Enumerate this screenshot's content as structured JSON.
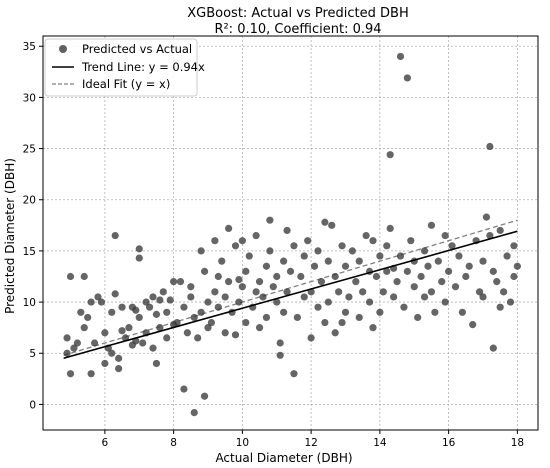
{
  "chart_data": {
    "type": "scatter",
    "title": "XGBoost: Actual vs Predicted DBH",
    "subtitle": "R²: 0.10, Coefficient: 0.94",
    "xlabel": "Actual Diameter (DBH)",
    "ylabel": "Predicted Diameter (DBH)",
    "xlim": [
      4.2,
      18.6
    ],
    "ylim": [
      -2.5,
      36
    ],
    "xticks": [
      6,
      8,
      10,
      12,
      14,
      16,
      18
    ],
    "yticks": [
      0,
      5,
      10,
      15,
      20,
      25,
      30,
      35
    ],
    "grid": true,
    "legend_position": "top-left",
    "legend": [
      {
        "label": "Predicted vs Actual",
        "marker": "circle",
        "color": "#3a3a3a"
      },
      {
        "label": "Trend Line: y = 0.94x",
        "marker": "line",
        "color": "#000000"
      },
      {
        "label": "Ideal Fit (y = x)",
        "marker": "dashed-line",
        "color": "#808080"
      }
    ],
    "trend_line": {
      "slope": 0.94,
      "x_range": [
        4.8,
        18
      ]
    },
    "ideal_line": {
      "slope": 1.0,
      "x_range": [
        4.8,
        18
      ]
    },
    "series": [
      {
        "name": "Predicted vs Actual",
        "color": "#3a3a3a",
        "points": [
          [
            4.9,
            5.0
          ],
          [
            4.9,
            6.5
          ],
          [
            5.0,
            12.5
          ],
          [
            5.0,
            3.0
          ],
          [
            5.1,
            5.5
          ],
          [
            5.2,
            6.0
          ],
          [
            5.3,
            9.0
          ],
          [
            5.4,
            12.5
          ],
          [
            5.4,
            7.5
          ],
          [
            5.5,
            8.5
          ],
          [
            5.6,
            10.0
          ],
          [
            5.6,
            3.0
          ],
          [
            5.7,
            6.0
          ],
          [
            5.8,
            10.5
          ],
          [
            5.9,
            10.0
          ],
          [
            6.0,
            4.0
          ],
          [
            6.0,
            7.0
          ],
          [
            6.1,
            5.5
          ],
          [
            6.2,
            9.0
          ],
          [
            6.2,
            5.0
          ],
          [
            6.3,
            16.5
          ],
          [
            6.3,
            10.8
          ],
          [
            6.4,
            4.5
          ],
          [
            6.4,
            3.5
          ],
          [
            6.5,
            9.5
          ],
          [
            6.5,
            7.2
          ],
          [
            6.6,
            6.5
          ],
          [
            6.7,
            7.5
          ],
          [
            6.8,
            5.8
          ],
          [
            6.9,
            9.2
          ],
          [
            6.9,
            6.2
          ],
          [
            7.0,
            15.2
          ],
          [
            7.0,
            14.3
          ],
          [
            7.0,
            8.5
          ],
          [
            7.1,
            6.0
          ],
          [
            7.2,
            10.0
          ],
          [
            7.2,
            7.0
          ],
          [
            7.3,
            9.5
          ],
          [
            7.4,
            10.5
          ],
          [
            7.4,
            5.5
          ],
          [
            7.5,
            4.0
          ],
          [
            7.5,
            8.8
          ],
          [
            7.6,
            7.5
          ],
          [
            7.7,
            11.0
          ],
          [
            7.8,
            9.0
          ],
          [
            7.8,
            6.5
          ],
          [
            7.9,
            10.2
          ],
          [
            8.0,
            12.0
          ],
          [
            8.0,
            7.8
          ],
          [
            8.1,
            8.0
          ],
          [
            8.2,
            12.0
          ],
          [
            8.3,
            1.5
          ],
          [
            8.3,
            9.5
          ],
          [
            8.4,
            7.0
          ],
          [
            8.5,
            10.5
          ],
          [
            8.5,
            11.5
          ],
          [
            8.6,
            -0.8
          ],
          [
            8.6,
            8.5
          ],
          [
            8.7,
            6.5
          ],
          [
            8.8,
            9.0
          ],
          [
            8.8,
            15.0
          ],
          [
            8.9,
            0.8
          ],
          [
            8.9,
            13.0
          ],
          [
            9.0,
            10.0
          ],
          [
            9.0,
            7.5
          ],
          [
            9.1,
            8.0
          ],
          [
            9.2,
            11.0
          ],
          [
            9.2,
            16.0
          ],
          [
            9.3,
            12.5
          ],
          [
            9.3,
            9.5
          ],
          [
            9.4,
            14.0
          ],
          [
            9.5,
            7.0
          ],
          [
            9.5,
            10.5
          ],
          [
            9.6,
            17.2
          ],
          [
            9.6,
            12.0
          ],
          [
            9.7,
            9.0
          ],
          [
            9.8,
            15.5
          ],
          [
            9.8,
            6.8
          ],
          [
            9.9,
            10.0
          ],
          [
            10.0,
            16.0
          ],
          [
            10.0,
            11.5
          ],
          [
            10.1,
            13.0
          ],
          [
            10.1,
            8.0
          ],
          [
            10.2,
            14.5
          ],
          [
            10.3,
            9.5
          ],
          [
            10.4,
            11.0
          ],
          [
            10.4,
            16.5
          ],
          [
            10.5,
            12.0
          ],
          [
            10.5,
            7.5
          ],
          [
            10.6,
            10.5
          ],
          [
            10.7,
            13.5
          ],
          [
            10.7,
            8.5
          ],
          [
            10.8,
            18.0
          ],
          [
            10.8,
            15.0
          ],
          [
            10.9,
            11.5
          ],
          [
            11.0,
            10.0
          ],
          [
            11.0,
            12.5
          ],
          [
            11.1,
            6.0
          ],
          [
            11.1,
            4.8
          ],
          [
            11.2,
            14.0
          ],
          [
            11.2,
            9.0
          ],
          [
            11.3,
            17.0
          ],
          [
            11.3,
            11.0
          ],
          [
            11.4,
            13.0
          ],
          [
            11.5,
            15.5
          ],
          [
            11.5,
            3.0
          ],
          [
            11.6,
            8.5
          ],
          [
            11.7,
            12.5
          ],
          [
            11.8,
            10.5
          ],
          [
            11.8,
            14.5
          ],
          [
            11.9,
            16.0
          ],
          [
            12.0,
            6.5
          ],
          [
            12.0,
            11.0
          ],
          [
            12.1,
            13.5
          ],
          [
            12.2,
            9.5
          ],
          [
            12.2,
            15.0
          ],
          [
            12.3,
            12.0
          ],
          [
            12.4,
            17.8
          ],
          [
            12.4,
            8.0
          ],
          [
            12.5,
            10.0
          ],
          [
            12.5,
            14.0
          ],
          [
            12.6,
            17.5
          ],
          [
            12.7,
            7.0
          ],
          [
            12.7,
            12.5
          ],
          [
            12.8,
            11.0
          ],
          [
            12.9,
            15.5
          ],
          [
            13.0,
            9.0
          ],
          [
            13.0,
            13.5
          ],
          [
            13.1,
            10.5
          ],
          [
            13.2,
            15.0
          ],
          [
            13.3,
            12.0
          ],
          [
            13.4,
            8.5
          ],
          [
            13.4,
            14.0
          ],
          [
            13.5,
            11.0
          ],
          [
            13.6,
            16.5
          ],
          [
            13.7,
            10.0
          ],
          [
            13.7,
            13.0
          ],
          [
            13.8,
            16.0
          ],
          [
            13.8,
            7.5
          ],
          [
            13.9,
            12.5
          ],
          [
            14.0,
            14.5
          ],
          [
            14.0,
            9.0
          ],
          [
            14.1,
            11.0
          ],
          [
            14.2,
            15.5
          ],
          [
            14.2,
            13.0
          ],
          [
            14.3,
            24.4
          ],
          [
            14.3,
            17.2
          ],
          [
            14.4,
            10.5
          ],
          [
            14.5,
            12.0
          ],
          [
            14.6,
            34.0
          ],
          [
            14.6,
            14.5
          ],
          [
            14.7,
            9.5
          ],
          [
            14.8,
            31.9
          ],
          [
            14.8,
            13.0
          ],
          [
            14.9,
            16.0
          ],
          [
            15.0,
            11.5
          ],
          [
            15.0,
            14.0
          ],
          [
            15.1,
            8.5
          ],
          [
            15.2,
            12.5
          ],
          [
            15.3,
            15.0
          ],
          [
            15.3,
            10.5
          ],
          [
            15.4,
            13.5
          ],
          [
            15.5,
            17.5
          ],
          [
            15.5,
            11.0
          ],
          [
            15.6,
            9.0
          ],
          [
            15.7,
            14.0
          ],
          [
            15.8,
            12.0
          ],
          [
            15.9,
            16.5
          ],
          [
            15.9,
            10.0
          ],
          [
            16.0,
            13.0
          ],
          [
            16.1,
            15.5
          ],
          [
            16.2,
            11.5
          ],
          [
            16.3,
            14.5
          ],
          [
            16.4,
            9.0
          ],
          [
            16.5,
            12.5
          ],
          [
            16.6,
            13.5
          ],
          [
            16.7,
            7.8
          ],
          [
            16.8,
            16.0
          ],
          [
            16.9,
            11.0
          ],
          [
            17.0,
            14.0
          ],
          [
            17.0,
            10.5
          ],
          [
            17.1,
            18.3
          ],
          [
            17.2,
            25.2
          ],
          [
            17.2,
            16.5
          ],
          [
            17.3,
            5.5
          ],
          [
            17.3,
            13.0
          ],
          [
            17.4,
            12.0
          ],
          [
            17.5,
            17.0
          ],
          [
            17.5,
            9.5
          ],
          [
            17.6,
            11.0
          ],
          [
            17.7,
            14.5
          ],
          [
            17.8,
            10.0
          ],
          [
            17.9,
            12.5
          ],
          [
            17.9,
            15.5
          ],
          [
            18.0,
            13.5
          ],
          [
            6.8,
            9.5
          ],
          [
            7.6,
            10.2
          ],
          [
            9.9,
            12.2
          ],
          [
            12.9,
            8.0
          ],
          [
            14.4,
            13.3
          ]
        ]
      }
    ]
  }
}
